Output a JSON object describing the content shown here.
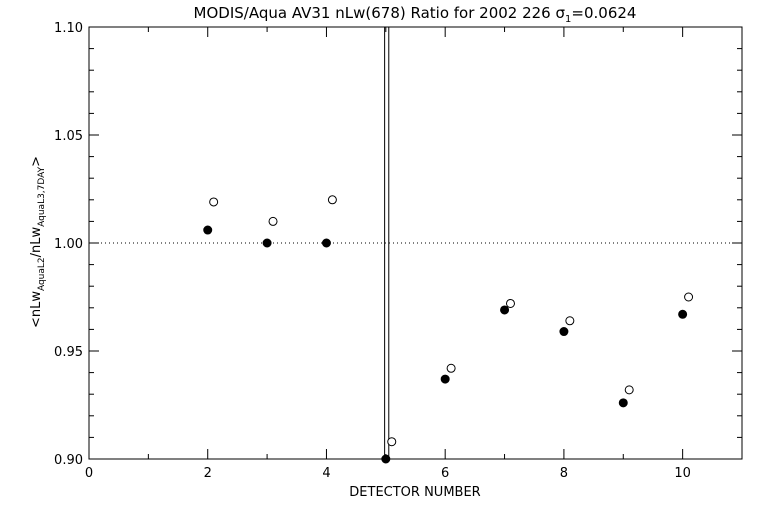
{
  "chart_data": {
    "type": "scatter",
    "title": "MODIS/Aqua AV31 nLw(678) Ratio for 2002 226 σ",
    "title_sub": "1",
    "title_suffix": "=0.0624",
    "xlabel": "DETECTOR NUMBER",
    "ylabel": {
      "prefix": "<nLw",
      "sub1": "AquaL2",
      "mid": "/nLw",
      "sub2": "AquaL3,7DAY",
      "suffix": ">"
    },
    "xlim": [
      0,
      11
    ],
    "ylim": [
      0.9,
      1.1
    ],
    "x_ticks": [
      0,
      2,
      4,
      6,
      8,
      10
    ],
    "x_tick_labels": [
      "0",
      "2",
      "4",
      "6",
      "8",
      "10"
    ],
    "y_ticks": [
      0.9,
      0.95,
      1.0,
      1.05,
      1.1
    ],
    "y_tick_labels": [
      "0.90",
      "0.95",
      "1.00",
      "1.05",
      "1.10"
    ],
    "reference_line_y": 1.0,
    "vertical_lines_x": [
      4.98,
      5.05
    ],
    "series": [
      {
        "marker": "filled-circle",
        "x": [
          2,
          3,
          4,
          5,
          6,
          7,
          8,
          9,
          10
        ],
        "y": [
          1.006,
          1.0,
          1.0,
          0.9,
          0.937,
          0.969,
          0.959,
          0.926,
          0.967
        ]
      },
      {
        "marker": "open-circle",
        "x": [
          2.1,
          3.1,
          4.1,
          5.1,
          6.1,
          7.1,
          8.1,
          9.1,
          10.1
        ],
        "y": [
          1.019,
          1.01,
          1.02,
          0.908,
          0.942,
          0.972,
          0.964,
          0.932,
          0.975
        ]
      }
    ]
  }
}
